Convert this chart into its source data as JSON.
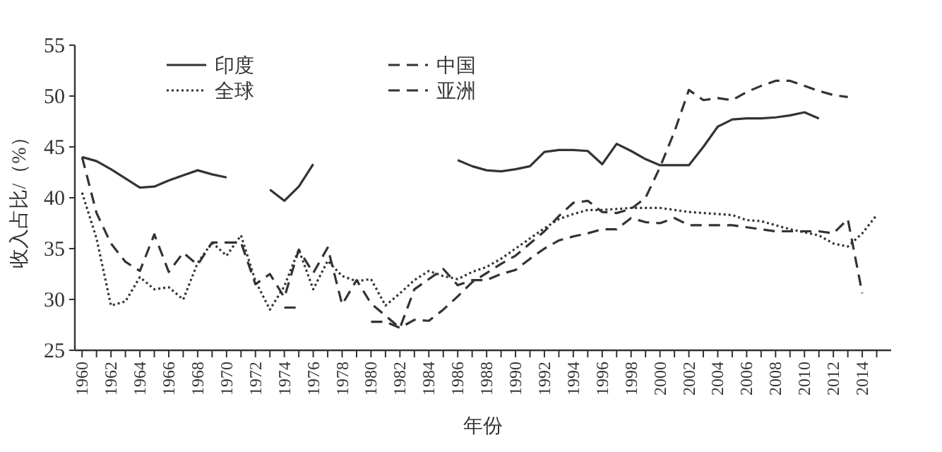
{
  "chart_data": {
    "type": "line",
    "xlabel": "年份",
    "ylabel": "收入占比/（%）",
    "xlim": [
      1959.5,
      2016
    ],
    "ylim": [
      25,
      55
    ],
    "yticks": [
      25,
      30,
      35,
      40,
      45,
      50,
      55
    ],
    "xticks": [
      1960,
      {
        "value": 1961,
        "label": null
      },
      1962,
      {
        "value": 1963,
        "label": null
      },
      1964,
      {
        "value": 1965,
        "label": null
      },
      1966,
      {
        "value": 1967,
        "label": null
      },
      1968,
      {
        "value": 1969,
        "label": null
      },
      1970,
      {
        "value": 1971,
        "label": null
      },
      1972,
      {
        "value": 1973,
        "label": null
      },
      1974,
      {
        "value": 1975,
        "label": null
      },
      1976,
      {
        "value": 1977,
        "label": null
      },
      1978,
      {
        "value": 1979,
        "label": null
      },
      1980,
      {
        "value": 1981,
        "label": null
      },
      1982,
      {
        "value": 1983,
        "label": null
      },
      1984,
      {
        "value": 1985,
        "label": null
      },
      1986,
      {
        "value": 1987,
        "label": null
      },
      1988,
      {
        "value": 1989,
        "label": null
      },
      1990,
      {
        "value": 1991,
        "label": null
      },
      1992,
      {
        "value": 1993,
        "label": null
      },
      1994,
      {
        "value": 1995,
        "label": null
      },
      1996,
      {
        "value": 1997,
        "label": null
      },
      1998,
      {
        "value": 1999,
        "label": null
      },
      2000,
      {
        "value": 2001,
        "label": null
      },
      2002,
      {
        "value": 2003,
        "label": null
      },
      2004,
      {
        "value": 2005,
        "label": null
      },
      2006,
      {
        "value": 2007,
        "label": null
      },
      2008,
      {
        "value": 2009,
        "label": null
      },
      2010,
      {
        "value": 2011,
        "label": null
      },
      2012,
      {
        "value": 2013,
        "label": null
      },
      2014,
      {
        "value": 2015,
        "label": null
      }
    ],
    "legend": "top left",
    "grid": false,
    "marker": "none",
    "series": [
      {
        "name": "印度",
        "color": "#333333",
        "line_style": "solid",
        "x": [
          1960,
          1961,
          1962,
          1963,
          1964,
          1965,
          1966,
          1967,
          1968,
          1969,
          1970,
          1971,
          1973,
          1974,
          1975,
          1976,
          1977,
          1986,
          1987,
          1988,
          1989,
          1990,
          1991,
          1992,
          1993,
          1994,
          1995,
          1996,
          1997,
          1998,
          1999,
          2000,
          2001,
          2002,
          2003,
          2004,
          2005,
          2006,
          2007,
          2008,
          2009,
          2010,
          2011
        ],
        "values": [
          44,
          43.6,
          42.8,
          41.9,
          41.0,
          41.1,
          41.7,
          42.2,
          42.7,
          42.3,
          42.0,
          null,
          40.8,
          39.7,
          41.1,
          43.3,
          null,
          43.7,
          43.1,
          42.7,
          42.6,
          42.8,
          43.1,
          44.5,
          44.7,
          44.7,
          44.6,
          43.3,
          45.3,
          44.6,
          43.8,
          43.2,
          43.2,
          43.2,
          45.0,
          47.0,
          47.7,
          47.8,
          47.8,
          47.9,
          48.1,
          48.4,
          47.8
        ]
      },
      {
        "name": "中国",
        "color": "#333333",
        "line_style": "dashed",
        "x": [
          1974,
          1975,
          1976,
          1980,
          1981,
          1982,
          1983,
          1984,
          1985,
          1986,
          1987,
          1988,
          1989,
          1990,
          1991,
          1992,
          1993,
          1994,
          1995,
          1996,
          1997,
          1998,
          1999,
          2000,
          2001,
          2002,
          2003,
          2004,
          2005,
          2006,
          2007,
          2008,
          2009,
          2010,
          2011,
          2012,
          2013
        ],
        "values": [
          29.2,
          29.2,
          null,
          27.8,
          27.8,
          27.2,
          28.0,
          27.9,
          29.0,
          30.3,
          31.7,
          32.6,
          33.5,
          34.3,
          35.5,
          36.7,
          38.2,
          39.5,
          39.7,
          38.6,
          38.5,
          38.9,
          40.0,
          43.0,
          46.5,
          50.6,
          49.6,
          49.8,
          49.6,
          50.4,
          51.0,
          51.5,
          51.5,
          51.0,
          50.5,
          50.1,
          49.9
        ]
      },
      {
        "name": "全球",
        "color": "#333333",
        "line_style": "dotted",
        "x": [
          1960,
          1961,
          1962,
          1963,
          1964,
          1965,
          1966,
          1967,
          1968,
          1969,
          1970,
          1971,
          1972,
          1973,
          1974,
          1975,
          1976,
          1977,
          1978,
          1979,
          1980,
          1981,
          1982,
          1983,
          1984,
          1985,
          1986,
          1987,
          1988,
          1989,
          1990,
          1991,
          1992,
          1993,
          1994,
          1995,
          1996,
          1997,
          1998,
          1999,
          2000,
          2001,
          2002,
          2003,
          2004,
          2005,
          2006,
          2007,
          2008,
          2009,
          2010,
          2011,
          2012,
          2013,
          2014,
          2015
        ],
        "values": [
          40.5,
          36,
          29.4,
          29.8,
          32.2,
          31.0,
          31.2,
          30.0,
          33.6,
          35.6,
          34.3,
          36.3,
          31.8,
          29.0,
          31.3,
          34.9,
          31.0,
          33.8,
          32.3,
          31.8,
          32.0,
          29.4,
          30.6,
          31.9,
          32.8,
          32.3,
          32.0,
          32.7,
          33.2,
          34.0,
          35.0,
          36.0,
          37.0,
          37.9,
          38.4,
          38.8,
          38.8,
          38.9,
          39.0,
          39.0,
          39.0,
          38.8,
          38.6,
          38.5,
          38.4,
          38.3,
          37.8,
          37.7,
          37.3,
          36.9,
          36.6,
          36.3,
          35.5,
          35.2,
          36.5,
          38.3
        ]
      },
      {
        "name": "亚洲",
        "color": "#333333",
        "line_style": "dashed",
        "x": [
          1960,
          1961,
          1962,
          1963,
          1964,
          1965,
          1966,
          1967,
          1968,
          1969,
          1970,
          1971,
          1972,
          1973,
          1974,
          1975,
          1976,
          1977,
          1978,
          1979,
          1980,
          1981,
          1982,
          1983,
          1984,
          1985,
          1986,
          1987,
          1988,
          1989,
          1990,
          1991,
          1992,
          1993,
          1994,
          1995,
          1996,
          1997,
          1998,
          1999,
          2000,
          2001,
          2002,
          2003,
          2004,
          2005,
          2006,
          2007,
          2008,
          2009,
          2010,
          2011,
          2012,
          2013,
          2014
        ],
        "values": [
          44,
          38.5,
          35.5,
          33.7,
          32.8,
          36.4,
          32.7,
          34.6,
          33.4,
          35.6,
          35.6,
          35.6,
          31.5,
          32.5,
          30.2,
          34.9,
          32.6,
          35.1,
          29.5,
          31.9,
          29.6,
          28.4,
          27.2,
          31.0,
          32.0,
          33.0,
          31.4,
          31.9,
          31.9,
          32.5,
          32.9,
          34.0,
          35.0,
          35.8,
          36.2,
          36.5,
          36.9,
          36.9,
          38.0,
          37.6,
          37.5,
          38.0,
          37.3,
          37.3,
          37.3,
          37.3,
          37.1,
          36.9,
          36.7,
          36.7,
          36.7,
          36.7,
          36.5,
          37.9,
          30.6
        ]
      }
    ]
  }
}
